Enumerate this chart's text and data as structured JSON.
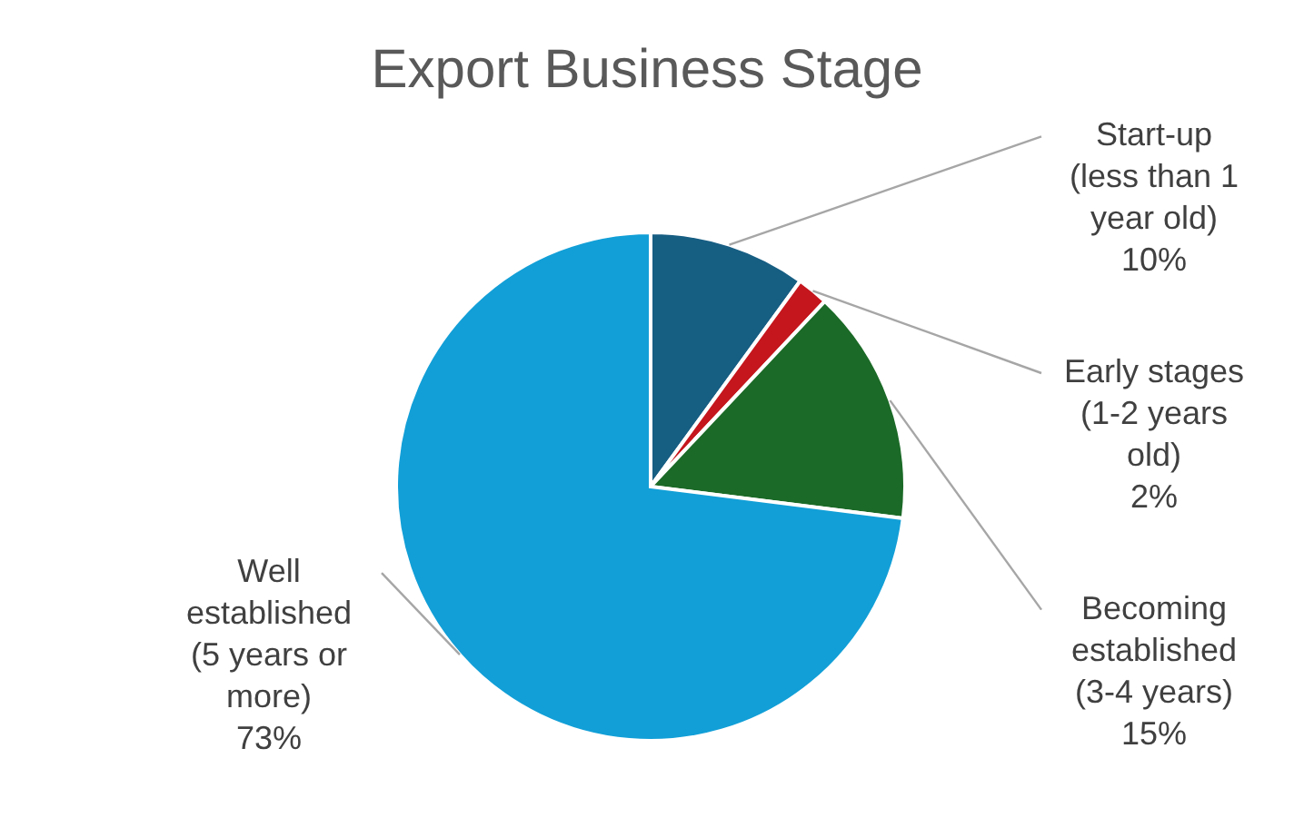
{
  "chart_data": {
    "type": "pie",
    "title": "Export Business Stage",
    "categories": [
      "Start-up (less than 1 year old)",
      "Early stages (1-2 years old)",
      "Becoming established (3-4 years)",
      "Well established (5 years or more)"
    ],
    "values": [
      10,
      2,
      15,
      73
    ],
    "colors": [
      "#175e83",
      "#c5161d",
      "#1b6a27",
      "#129fd7"
    ],
    "value_labels": [
      "10%",
      "2%",
      "15%",
      "73%"
    ]
  }
}
